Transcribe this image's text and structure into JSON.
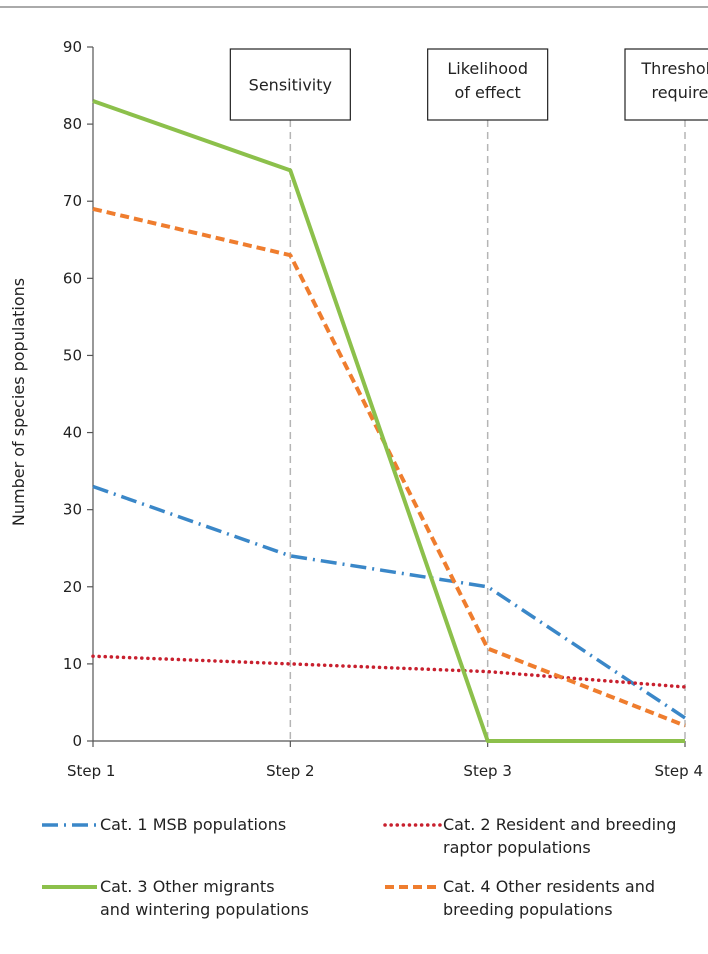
{
  "chart_data": {
    "type": "line",
    "categories": [
      "Step 1",
      "Step 2",
      "Step 3",
      "Step 4"
    ],
    "ylabel": "Number of species populations",
    "xlabel": "",
    "ylim": [
      0,
      90
    ],
    "yticks": [
      0,
      10,
      20,
      30,
      40,
      50,
      60,
      70,
      80,
      90
    ],
    "step_annotations": [
      {
        "step": 1,
        "lines": [
          "Sensitivity"
        ]
      },
      {
        "step": 2,
        "lines": [
          "Likelihood",
          "of effect"
        ]
      },
      {
        "step": 3,
        "lines": [
          "Thresholds",
          "required"
        ]
      }
    ],
    "series": [
      {
        "name": "Cat. 1 MSB populations",
        "values": [
          33,
          24,
          20,
          3
        ],
        "color": "#3a87c8",
        "style": "dash-dot"
      },
      {
        "name": "Cat. 2 Resident and breeding raptor populations",
        "legend_lines": [
          "Cat. 2 Resident and breeding",
          "raptor populations"
        ],
        "values": [
          11,
          10,
          9,
          7
        ],
        "color": "#c8202e",
        "style": "dotted"
      },
      {
        "name": "Cat. 3 Other migrants and wintering populations",
        "legend_lines": [
          "Cat. 3 Other migrants",
          "and wintering populations"
        ],
        "values": [
          83,
          74,
          0,
          0
        ],
        "color": "#8cc04b",
        "style": "solid"
      },
      {
        "name": "Cat. 4 Other residents and breeding populations",
        "legend_lines": [
          "Cat. 4 Other residents and",
          "breeding populations"
        ],
        "values": [
          69,
          63,
          12,
          2
        ],
        "color": "#ef7d2e",
        "style": "dashed"
      }
    ],
    "grid": false,
    "legend_position": "bottom"
  }
}
